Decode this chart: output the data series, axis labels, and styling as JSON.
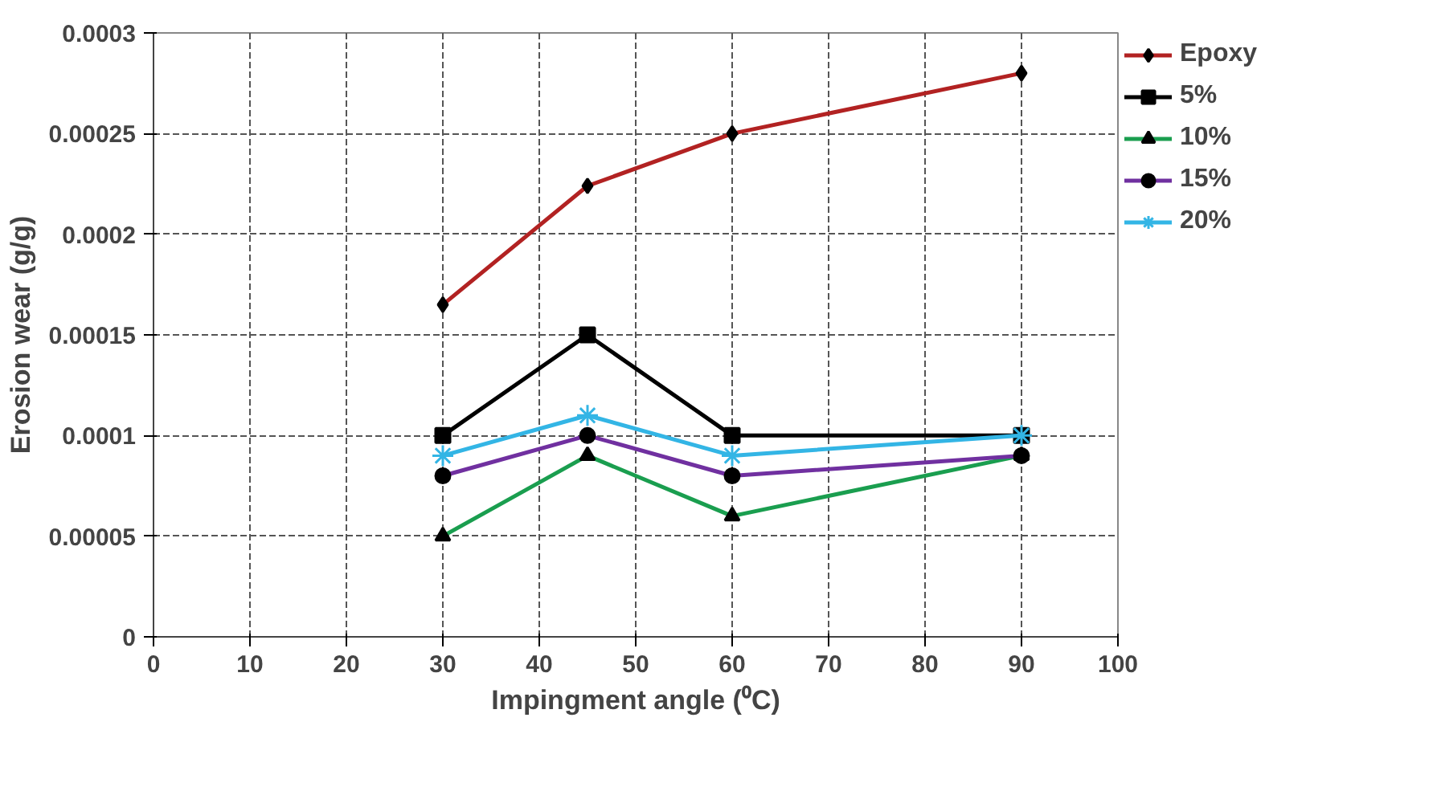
{
  "chart_data": {
    "type": "line",
    "xlabel": "Impingment angle (⁰C)",
    "ylabel": "Erosion wear (g/g)",
    "x": [
      30,
      45,
      60,
      90
    ],
    "series": [
      {
        "name": "Epoxy",
        "color": "#b22222",
        "marker": "diamond",
        "values": [
          0.000165,
          0.000224,
          0.00025,
          0.00028
        ]
      },
      {
        "name": "5%",
        "color": "#000000",
        "marker": "square",
        "values": [
          0.0001,
          0.00015,
          0.0001,
          0.0001
        ]
      },
      {
        "name": "10%",
        "color": "#1a9e4f",
        "marker": "triangle",
        "values": [
          5e-05,
          9e-05,
          6e-05,
          9e-05
        ]
      },
      {
        "name": "15%",
        "color": "#7030a0",
        "marker": "circle",
        "values": [
          8e-05,
          0.0001,
          8e-05,
          9e-05
        ]
      },
      {
        "name": "20%",
        "color": "#33b5e5",
        "marker": "cross",
        "values": [
          9e-05,
          0.00011,
          9e-05,
          0.0001
        ]
      }
    ],
    "xlim": [
      0,
      100
    ],
    "xticks": [
      0,
      10,
      20,
      30,
      40,
      50,
      60,
      70,
      80,
      90,
      100
    ],
    "ylim": [
      0,
      0.0003
    ],
    "yticks": [
      {
        "value": 0,
        "label": "0"
      },
      {
        "value": 5e-05,
        "label": "0.00005"
      },
      {
        "value": 0.0001,
        "label": "0.0001"
      },
      {
        "value": 0.00015,
        "label": "0.00015"
      },
      {
        "value": 0.0002,
        "label": "0.0002"
      },
      {
        "value": 0.00025,
        "label": "0.00025"
      },
      {
        "value": 0.0003,
        "label": "0.0003"
      }
    ],
    "grid": true,
    "legend": "right",
    "line_style": "solid"
  }
}
